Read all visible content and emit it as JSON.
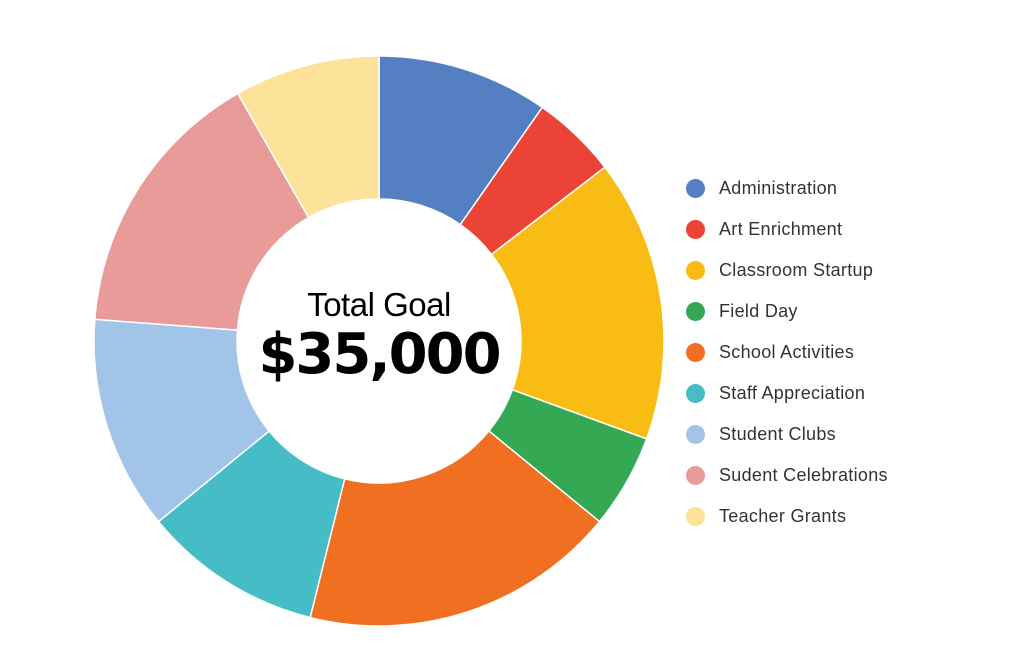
{
  "chart_data": {
    "type": "pie",
    "style": "donut",
    "center": {
      "title": "Total Goal",
      "value": "$35,000"
    },
    "legend_position": "right",
    "slices": [
      {
        "name": "Administration",
        "value": 10.0,
        "color": "#557fc3"
      },
      {
        "name": "Art Enrichment",
        "value": 5.0,
        "color": "#eb4335"
      },
      {
        "name": "Classroom Startup",
        "value": 16.5,
        "color": "#f9bc15"
      },
      {
        "name": "Field Day",
        "value": 5.5,
        "color": "#34a853"
      },
      {
        "name": "School Activities",
        "value": 18.5,
        "color": "#f06f21"
      },
      {
        "name": "Staff Appreciation",
        "value": 10.5,
        "color": "#46bdc6"
      },
      {
        "name": "Student Clubs",
        "value": 12.5,
        "color": "#a1c4e8"
      },
      {
        "name": "Sudent Celebrations",
        "value": 16.0,
        "color": "#e99b9a"
      },
      {
        "name": "Teacher Grants",
        "value": 8.5,
        "color": "#fce399"
      }
    ]
  }
}
